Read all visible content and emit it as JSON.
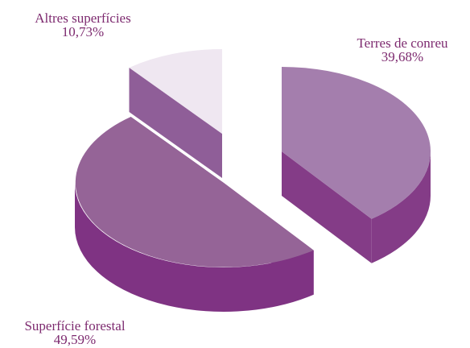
{
  "chart_data": {
    "type": "pie",
    "style": "3d-exploded",
    "slices": [
      {
        "label": "Terres de conreu",
        "value": 39.68,
        "value_text": "39,68%",
        "color": "#a47ead",
        "side_color": "#843c87"
      },
      {
        "label": "Superfície forestal",
        "value": 49.59,
        "value_text": "49,59%",
        "color": "#956497",
        "side_color": "#7f3383"
      },
      {
        "label": "Altres superfícies",
        "value": 10.73,
        "value_text": "10,73%",
        "color": "#efe7f1",
        "side_color": "#8f5e98"
      }
    ],
    "label_color": "#7d2a6f"
  }
}
